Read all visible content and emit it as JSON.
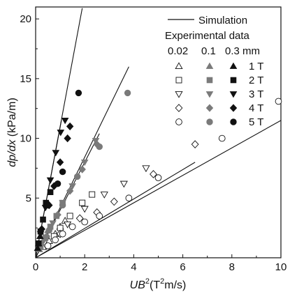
{
  "chart_data": {
    "type": "scatter",
    "xlabel": {
      "var": "UB",
      "sup": "2",
      "unit_pre": "(T",
      "unit_sup": "2",
      "unit_post": "m/s)"
    },
    "ylabel": {
      "var": "dp/dx",
      "unit": " (kPa/m)"
    },
    "xlim": [
      0,
      10
    ],
    "ylim": [
      0,
      21
    ],
    "xticks": [
      0,
      2,
      4,
      6,
      8,
      10
    ],
    "yticks": [
      5,
      10,
      15,
      20
    ],
    "grid": false,
    "legend": {
      "position": "top-right",
      "line_label": "Simulation",
      "header": "Experimental data",
      "column_labels": [
        "0.02",
        "0.1",
        "0.3 mm"
      ],
      "row_labels": [
        "1 T",
        "2 T",
        "3 T",
        "4 T",
        "5 T"
      ]
    },
    "simulation_lines": [
      {
        "name": "0.02 mm",
        "x": [
          0,
          10
        ],
        "y": [
          0,
          11.5
        ]
      },
      {
        "name": "0.02 mm",
        "x": [
          0,
          6.5
        ],
        "y": [
          0,
          8.0
        ]
      },
      {
        "name": "0.1 mm",
        "x": [
          0,
          3.8
        ],
        "y": [
          0,
          16.0
        ]
      },
      {
        "name": "0.1 mm",
        "x": [
          0,
          2.6
        ],
        "y": [
          0,
          10.4
        ]
      },
      {
        "name": "0.3 mm",
        "x": [
          0,
          1.9
        ],
        "y": [
          0,
          20.9
        ]
      },
      {
        "name": "0.3 mm",
        "x": [
          0,
          1.05
        ],
        "y": [
          0,
          11.5
        ]
      }
    ],
    "series": [
      {
        "name": "0.02 mm, 1 T",
        "marker": "triangle-up",
        "filled": false,
        "points": [
          [
            0.3,
            0.9
          ],
          [
            0.55,
            1.4
          ],
          [
            0.8,
            2.0
          ],
          [
            1.0,
            2.6
          ],
          [
            1.2,
            3.1
          ]
        ]
      },
      {
        "name": "0.02 mm, 2 T",
        "marker": "square",
        "filled": false,
        "points": [
          [
            0.75,
            1.8
          ],
          [
            1.0,
            2.5
          ],
          [
            1.4,
            3.5
          ],
          [
            1.9,
            4.6
          ],
          [
            2.3,
            5.3
          ]
        ]
      },
      {
        "name": "0.02 mm, 3 T",
        "marker": "triangle-down",
        "filled": false,
        "points": [
          [
            1.3,
            2.8
          ],
          [
            2.0,
            4.1
          ],
          [
            2.8,
            5.3
          ],
          [
            3.6,
            6.2
          ],
          [
            4.5,
            7.5
          ]
        ]
      },
      {
        "name": "0.02 mm, 4 T",
        "marker": "diamond",
        "filled": false,
        "points": [
          [
            1.0,
            2.0
          ],
          [
            1.8,
            3.3
          ],
          [
            2.5,
            3.8
          ],
          [
            3.2,
            4.7
          ],
          [
            4.8,
            7.0
          ],
          [
            6.5,
            9.5
          ]
        ]
      },
      {
        "name": "0.02 mm, 5 T",
        "marker": "circle",
        "filled": false,
        "points": [
          [
            0.5,
            1.0
          ],
          [
            0.8,
            1.5
          ],
          [
            1.1,
            2.0
          ],
          [
            1.5,
            2.6
          ],
          [
            2.0,
            3.0
          ],
          [
            2.6,
            3.5
          ],
          [
            3.8,
            5.0
          ],
          [
            5.0,
            6.7
          ],
          [
            7.6,
            10.0
          ],
          [
            9.9,
            13.1
          ]
        ]
      },
      {
        "name": "0.1 mm, 1 T",
        "marker": "triangle-up",
        "filled": true,
        "points": [
          [
            0.15,
            0.7
          ],
          [
            0.25,
            1.2
          ],
          [
            0.35,
            1.6
          ],
          [
            0.5,
            2.3
          ]
        ]
      },
      {
        "name": "0.1 mm, 2 T",
        "marker": "square",
        "filled": true,
        "points": [
          [
            0.2,
            0.9
          ],
          [
            0.4,
            1.7
          ],
          [
            0.6,
            2.6
          ],
          [
            0.85,
            3.5
          ],
          [
            1.1,
            4.6
          ]
        ]
      },
      {
        "name": "0.1 mm, 3 T",
        "marker": "triangle-down",
        "filled": true,
        "points": [
          [
            0.35,
            1.5
          ],
          [
            0.7,
            2.9
          ],
          [
            1.1,
            4.6
          ],
          [
            1.5,
            6.0
          ],
          [
            2.0,
            8.0
          ],
          [
            2.45,
            9.8
          ]
        ]
      },
      {
        "name": "0.1 mm, 4 T",
        "marker": "diamond",
        "filled": true,
        "points": [
          [
            0.45,
            1.8
          ],
          [
            0.9,
            3.6
          ],
          [
            1.4,
            5.6
          ],
          [
            1.9,
            7.4
          ],
          [
            2.5,
            9.5
          ]
        ]
      },
      {
        "name": "0.1 mm, 5 T",
        "marker": "circle",
        "filled": true,
        "points": [
          [
            0.55,
            2.3
          ],
          [
            1.1,
            4.4
          ],
          [
            1.7,
            6.8
          ],
          [
            2.6,
            9.3
          ],
          [
            3.75,
            13.8
          ]
        ]
      },
      {
        "name": "0.3 mm, 1 T",
        "marker": "triangle-up",
        "filled": true,
        "points": [
          [
            0.08,
            0.8
          ],
          [
            0.12,
            1.2
          ],
          [
            0.18,
            1.8
          ]
        ]
      },
      {
        "name": "0.3 mm, 2 T",
        "marker": "square",
        "filled": true,
        "points": [
          [
            0.12,
            1.2
          ],
          [
            0.2,
            2.2
          ],
          [
            0.3,
            3.2
          ],
          [
            0.42,
            4.6
          ],
          [
            0.6,
            5.5
          ]
        ]
      },
      {
        "name": "0.3 mm, 3 T",
        "marker": "triangle-down",
        "filled": true,
        "points": [
          [
            0.2,
            2.0
          ],
          [
            0.4,
            4.2
          ],
          [
            0.6,
            6.5
          ],
          [
            0.82,
            8.8
          ],
          [
            1.02,
            10.5
          ],
          [
            1.2,
            11.5
          ]
        ]
      },
      {
        "name": "0.3 mm, 4 T",
        "marker": "diamond",
        "filled": true,
        "points": [
          [
            0.25,
            2.4
          ],
          [
            0.55,
            4.4
          ],
          [
            0.75,
            6.0
          ],
          [
            1.0,
            8.0
          ],
          [
            1.3,
            10.0
          ],
          [
            1.4,
            11.0
          ]
        ]
      },
      {
        "name": "0.3 mm, 5 T",
        "marker": "circle",
        "filled": true,
        "points": [
          [
            0.5,
            4.4
          ],
          [
            0.9,
            6.2
          ],
          [
            1.1,
            7.2
          ],
          [
            1.75,
            13.8
          ]
        ]
      }
    ]
  }
}
